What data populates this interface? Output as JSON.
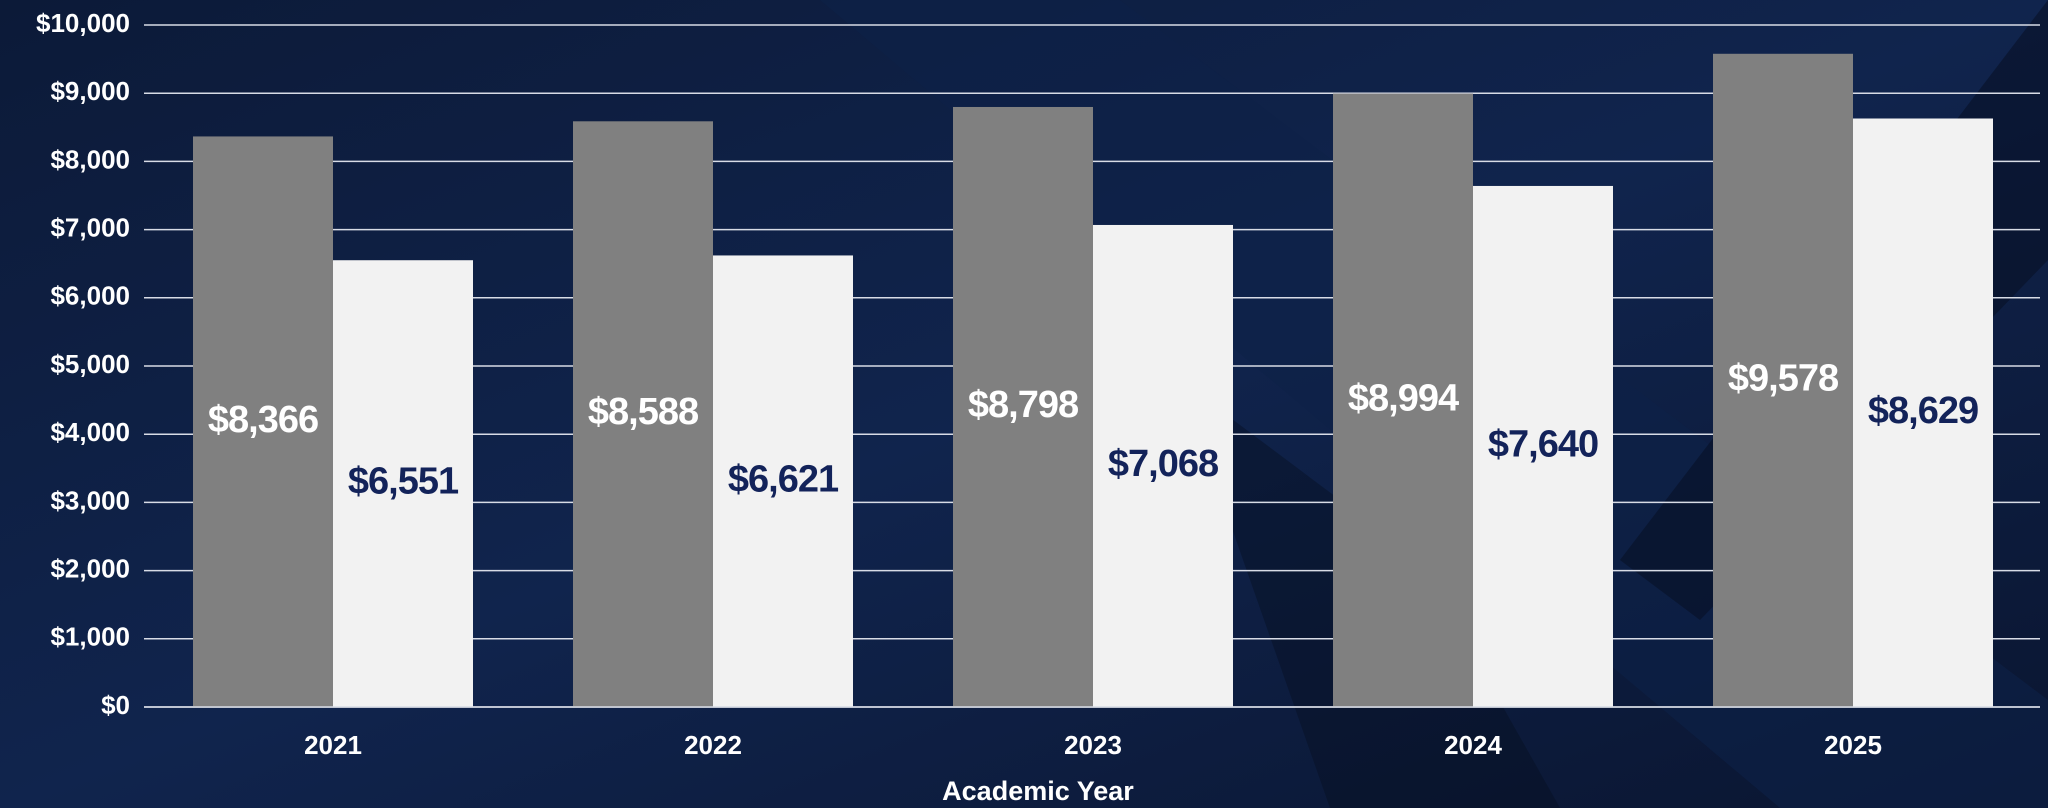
{
  "chart_data": {
    "type": "bar",
    "x_label": "Academic Year",
    "categories": [
      "2021",
      "2022",
      "2023",
      "2024",
      "2025"
    ],
    "series": [
      {
        "color": "#808080",
        "label_color": "#ffffff",
        "values": [
          8366,
          8588,
          8798,
          8994,
          9578
        ],
        "value_labels": [
          "$8,366",
          "$8,588",
          "$8,798",
          "$8,994",
          "$9,578"
        ]
      },
      {
        "color": "#f2f2f2",
        "label_color": "#13235a",
        "values": [
          6551,
          6621,
          7068,
          7640,
          8629
        ],
        "value_labels": [
          "$6,551",
          "$6,621",
          "$7,068",
          "$7,640",
          "$8,629"
        ]
      }
    ],
    "ylim": [
      0,
      10000
    ],
    "yticks": [
      {
        "value": 0,
        "label": "$0"
      },
      {
        "value": 1000,
        "label": "$1,000"
      },
      {
        "value": 2000,
        "label": "$2,000"
      },
      {
        "value": 3000,
        "label": "$3,000"
      },
      {
        "value": 4000,
        "label": "$4,000"
      },
      {
        "value": 5000,
        "label": "$5,000"
      },
      {
        "value": 6000,
        "label": "$6,000"
      },
      {
        "value": 7000,
        "label": "$7,000"
      },
      {
        "value": 8000,
        "label": "$8,000"
      },
      {
        "value": 9000,
        "label": "$9,000"
      },
      {
        "value": 10000,
        "label": "$10,000"
      }
    ],
    "grid": true
  }
}
